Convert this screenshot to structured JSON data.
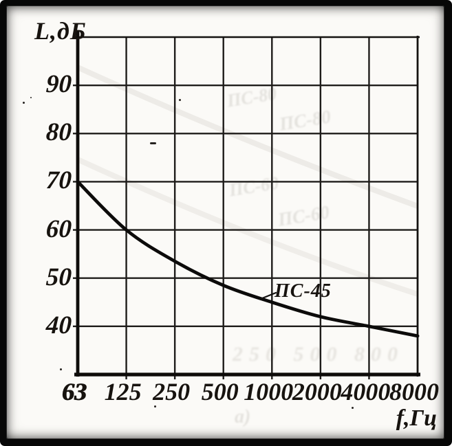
{
  "chart_data": {
    "type": "line",
    "title": "",
    "ylabel": "L,дБ",
    "xlabel": "f,Гц",
    "x_scale": "octave-log2",
    "categories": [
      "63",
      "125",
      "250",
      "500",
      "1000",
      "2000",
      "4000",
      "8000"
    ],
    "series": [
      {
        "name": "ПС-45",
        "values": [
          70,
          60,
          53.5,
          48.5,
          45,
          42,
          40,
          38
        ]
      }
    ],
    "y_tick_labels": [
      "90",
      "80",
      "70",
      "60",
      "50",
      "40"
    ],
    "ylim": [
      30,
      100
    ],
    "grid": true,
    "legend_position": "inline-curve-label"
  },
  "artifacts": {
    "ghost_labels": [
      "ПС-80",
      "ПС-80",
      "ПС-60",
      "ПС-60"
    ],
    "ghost_digits": "250 500 800",
    "ghost_note": "а)"
  }
}
